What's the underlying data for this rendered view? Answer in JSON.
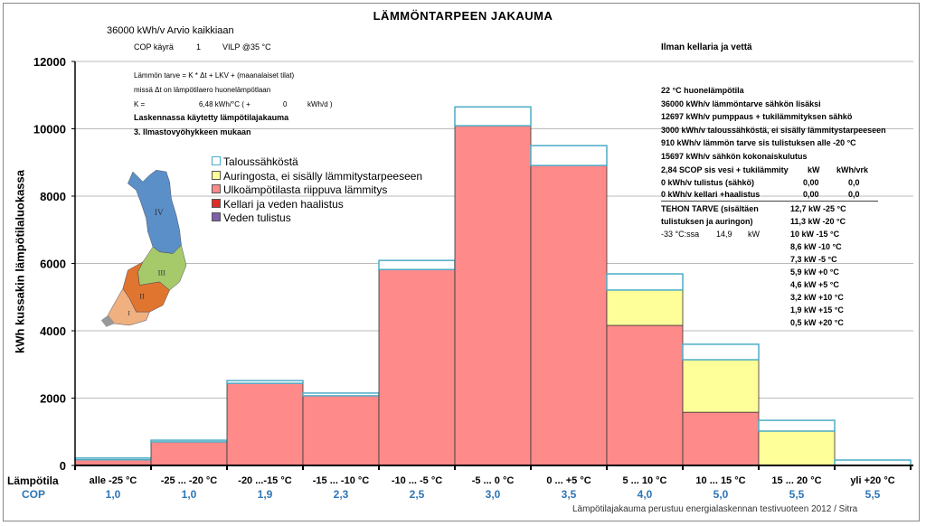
{
  "chart_data": {
    "type": "bar",
    "stacked": true,
    "title": "LÄMMÖNTARPEEN JAKAUMA",
    "ylabel": "kWh kussakin lämpötilaluokassa",
    "ylim": [
      0,
      12000
    ],
    "yticks": [
      "0",
      "2000",
      "4000",
      "6000",
      "8000",
      "10000",
      "12000"
    ],
    "grid": true,
    "legend_position": "upper-left",
    "x_row_label": "Lämpötila",
    "cop_row_label": "COP",
    "categories": [
      "alle -25 °C",
      "-25 ... -20 °C",
      "-20 ...-15 °C",
      "-15 ... -10 °C",
      "-10 ... -5 °C",
      "-5 ... 0 °C",
      "0 ... +5 °C",
      "5 ... 10 °C",
      "10 ... 15 °C",
      "15 ... 20 °C",
      "yli +20 °C"
    ],
    "cop": [
      "1,0",
      "1,0",
      "1,9",
      "2,3",
      "2,5",
      "3,0",
      "3,5",
      "4,0",
      "5,0",
      "5,5",
      "5,5"
    ],
    "series": [
      {
        "name": "Veden tulistus",
        "color": "#7f5fa8",
        "values": [
          0,
          0,
          0,
          0,
          0,
          0,
          0,
          0,
          0,
          0,
          0
        ]
      },
      {
        "name": "Kellari ja veden haalistus",
        "color": "#e32b2b",
        "values": [
          0,
          0,
          0,
          0,
          0,
          0,
          0,
          0,
          0,
          0,
          0
        ]
      },
      {
        "name": "Ulkoämpötilasta riippuva lämmitys",
        "color": "#ff8a8a",
        "values": [
          170,
          700,
          2440,
          2070,
          5820,
          10090,
          8910,
          4160,
          1580,
          0,
          0
        ]
      },
      {
        "name": "Auringosta, ei sisälly lämmitystarpeeseen",
        "color": "#ffff99",
        "values": [
          0,
          0,
          0,
          0,
          0,
          0,
          0,
          1050,
          1560,
          1020,
          0
        ]
      },
      {
        "name": "Taloussähköstä",
        "color": "#ffffff",
        "edge": "#4bacc6",
        "values": [
          50,
          50,
          80,
          80,
          270,
          560,
          590,
          480,
          460,
          320,
          160
        ]
      }
    ],
    "legend_order": [
      "Taloussähköstä",
      "Auringosta, ei sisälly lämmitystarpeeseen",
      "Ulkoämpötilasta riippuva lämmitys",
      "Kellari ja veden haalistus",
      "Veden tulistus"
    ]
  },
  "header": {
    "total": "36000 kWh/v Arvio kaikkiaan",
    "cop_curve_label": "COP käyrä",
    "cop_curve_value": "1",
    "cop_curve_type": "VILP @35 °C",
    "right_title": "Ilman kellaria ja vettä"
  },
  "formula": {
    "line1": "Lämmön tarve =  K * Δt + LKV + (maanalaiset tilat)",
    "line2": "missä Δt on lämpötilaero huonelämpötlaan",
    "k_label": "K =",
    "k_value": "6,48 kWh/°C  ( +",
    "k_extra": "0",
    "k_unit": "kWh/d )",
    "dist_title": "Laskennassa käytetty lämpötilajakauma",
    "dist_zone": "3.   Ilmastovyöhykkeen mukaan"
  },
  "map": {
    "zones": [
      "I",
      "II",
      "III",
      "IV"
    ]
  },
  "summary": {
    "lines": [
      "22  °C huonelämpötila",
      "36000  kWh/v lämmöntarve sähkön lisäksi",
      "12697  kWh/v pumppaus + tukilämmityksen sähkö",
      "3000  kWh/v   taloussähköstä, ei sisälly lämmitystarpeeseen",
      "910   kWh/v    lämmön tarve sis tulistuksen alle -20 °C",
      "15697  kWh/v  sähkön kokonaiskulutus"
    ],
    "scop": "2,84 SCOP sis vesi + tukilämmity",
    "col_kw": "kW",
    "col_kwh": "kWh/vrk",
    "rows": [
      {
        "label": "0  kWh/v   tulistus (sähkö)",
        "kw": "0,00",
        "kwh": "0,0"
      },
      {
        "label": "0  kWh/v  kellari +haalistus",
        "kw": "0,00",
        "kwh": "0,0"
      }
    ]
  },
  "power": {
    "title1": "TEHON TARVE (sisältäen",
    "title2": "tulistuksen ja auringon)",
    "design_temp": "-33  °C:ssa",
    "design_kw": "14,9",
    "design_unit": "kW",
    "list": [
      "12,7  kW  -25 °C",
      "11,3  kW  -20 °C",
      "10  kW  -15 °C",
      "8,6  kW  -10 °C",
      "7,3  kW  -5  °C",
      "5,9  kW  +0  °C",
      "4,6  kW  +5  °C",
      "3,2  kW  +10 °C",
      "1,9  kW  +15 °C",
      "0,5  kW  +20 °C"
    ]
  },
  "footnote": "Lämpötilajakauma perustuu energialaskennan testivuoteen 2012 / Sitra"
}
